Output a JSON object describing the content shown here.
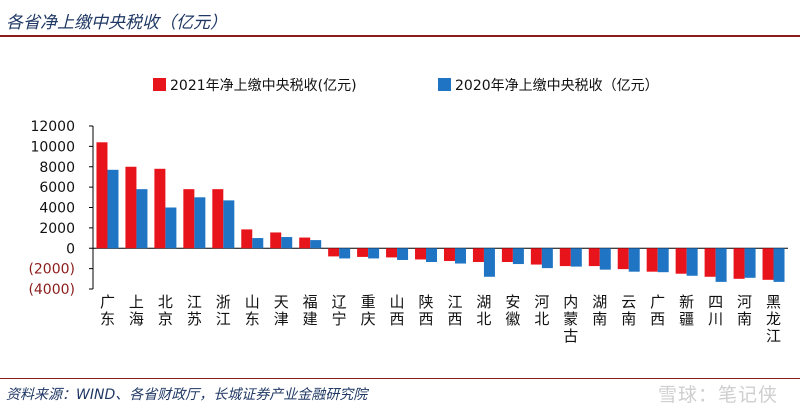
{
  "title": "各省净上缴中央税收（亿元）",
  "source": "资料来源：WIND、各省财政厅，长城证券产业金融研究院",
  "watermark": "雪球：笔记侠",
  "colors": {
    "series_2021": "#e8141c",
    "series_2020": "#1f74c4",
    "negative_tick": "#8b1c1c",
    "axis": "#000000"
  },
  "chart_data": {
    "type": "bar",
    "categories": [
      "广东",
      "上海",
      "北京",
      "江苏",
      "浙江",
      "山东",
      "天津",
      "福建",
      "辽宁",
      "重庆",
      "山西",
      "陕西",
      "江西",
      "湖北",
      "安徽",
      "河北",
      "内蒙古",
      "湖南",
      "云南",
      "广西",
      "新疆",
      "四川",
      "河南",
      "黑龙江"
    ],
    "series": [
      {
        "name": "2021年净上缴中央税收(亿元)",
        "values": [
          10400,
          8000,
          7800,
          5800,
          5800,
          1850,
          1550,
          1050,
          -800,
          -850,
          -900,
          -1100,
          -1250,
          -1350,
          -1350,
          -1600,
          -1750,
          -1750,
          -2050,
          -2300,
          -2500,
          -2800,
          -3000,
          -3100
        ]
      },
      {
        "name": "2020年净上缴中央税收（亿元）",
        "values": [
          7700,
          5800,
          4000,
          5000,
          4700,
          1000,
          1100,
          800,
          -1000,
          -1000,
          -1150,
          -1350,
          -1500,
          -2800,
          -1550,
          -1950,
          -1800,
          -2100,
          -2300,
          -2350,
          -2700,
          -3300,
          -2900,
          -3300
        ]
      }
    ],
    "yticks": [
      12000,
      10000,
      8000,
      6000,
      4000,
      2000,
      0,
      -2000,
      -4000
    ],
    "ytick_labels": [
      "12000",
      "10000",
      "8000",
      "6000",
      "4000",
      "2000",
      "0",
      "(2000)",
      "(4000)"
    ],
    "ylim": [
      -4000,
      12000
    ],
    "legend_position": "top"
  }
}
